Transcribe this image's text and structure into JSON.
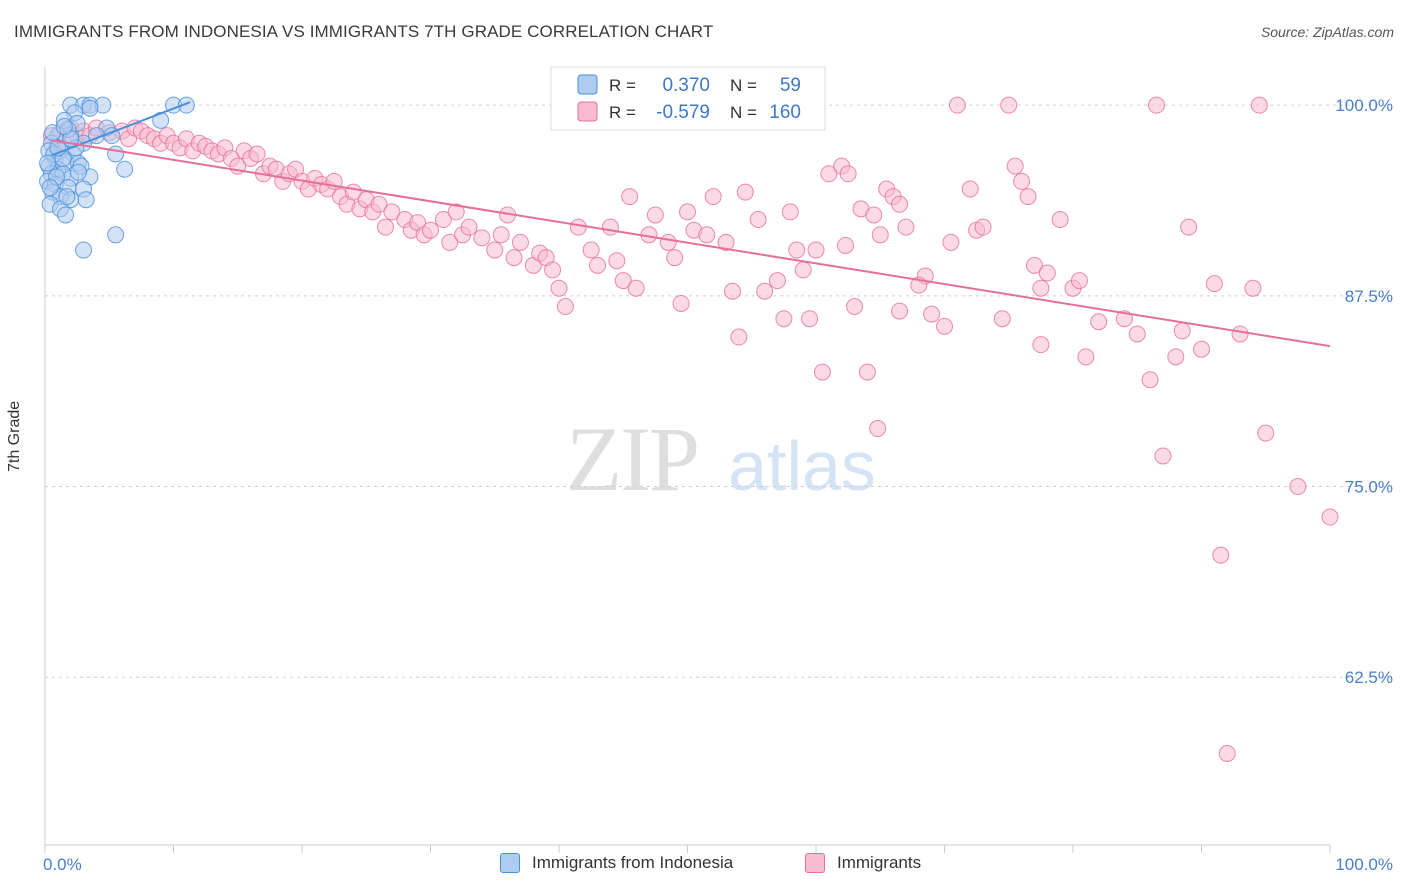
{
  "header": {
    "title": "IMMIGRANTS FROM INDONESIA VS IMMIGRANTS 7TH GRADE CORRELATION CHART",
    "source": "Source: ZipAtlas.com"
  },
  "watermark": {
    "zip": "ZIP",
    "atlas": "atlas"
  },
  "colors": {
    "blue": "#4a90d9",
    "blue_fill": "#aecbf0",
    "pink": "#e66f9a",
    "pink_fill": "#f7bcd0",
    "grid": "#cfcfcf"
  },
  "chart_data": {
    "type": "scatter",
    "title": "IMMIGRANTS FROM INDONESIA VS IMMIGRANTS 7TH GRADE CORRELATION CHART",
    "xlabel": "",
    "ylabel": "7th Grade",
    "xlim": [
      0,
      100
    ],
    "ylim": [
      51.5,
      102.5
    ],
    "x_tick_labels": [
      "0.0%",
      "100.0%"
    ],
    "y_ticks": [
      62.5,
      75.0,
      87.5,
      100.0
    ],
    "y_tick_labels": [
      "62.5%",
      "75.0%",
      "87.5%",
      "100.0%"
    ],
    "legend_stats": [
      {
        "r_label": "R =",
        "r_value": "0.370",
        "n_label": "N =",
        "n_value": "59"
      },
      {
        "r_label": "R =",
        "r_value": "-0.579",
        "n_label": "N =",
        "n_value": "160"
      }
    ],
    "series": [
      {
        "name": "Immigrants from Indonesia",
        "color": "#4a90d9",
        "trend": {
          "x": [
            0.5,
            11.3
          ],
          "y": [
            96.7,
            100.2
          ]
        },
        "points": [
          [
            2.0,
            100
          ],
          [
            3.0,
            100
          ],
          [
            3.5,
            100
          ],
          [
            4.5,
            100
          ],
          [
            10.0,
            100
          ],
          [
            11.0,
            100
          ],
          [
            2.3,
            99.5
          ],
          [
            3.5,
            99.8
          ],
          [
            1.5,
            99.0
          ],
          [
            2.5,
            98.8
          ],
          [
            4.8,
            98.5
          ],
          [
            9.0,
            99.0
          ],
          [
            1.0,
            98.0
          ],
          [
            2.0,
            98.0
          ],
          [
            3.0,
            97.5
          ],
          [
            4.0,
            98.0
          ],
          [
            5.2,
            98.0
          ],
          [
            0.5,
            97.5
          ],
          [
            1.2,
            97.0
          ],
          [
            2.2,
            96.8
          ],
          [
            0.8,
            96.5
          ],
          [
            1.6,
            96.3
          ],
          [
            2.6,
            96.2
          ],
          [
            0.3,
            96.0
          ],
          [
            1.0,
            95.8
          ],
          [
            0.5,
            95.5
          ],
          [
            1.4,
            95.5
          ],
          [
            2.0,
            95.2
          ],
          [
            3.5,
            95.3
          ],
          [
            0.2,
            95.0
          ],
          [
            0.8,
            94.8
          ],
          [
            1.8,
            94.6
          ],
          [
            0.6,
            94.3
          ],
          [
            1.2,
            94.0
          ],
          [
            2.0,
            93.8
          ],
          [
            0.4,
            93.5
          ],
          [
            1.2,
            93.2
          ],
          [
            1.6,
            92.8
          ],
          [
            5.5,
            96.8
          ],
          [
            6.2,
            95.8
          ],
          [
            0.3,
            97.0
          ],
          [
            0.7,
            96.8
          ],
          [
            1.4,
            96.5
          ],
          [
            2.8,
            96.0
          ],
          [
            0.9,
            95.3
          ],
          [
            0.4,
            94.6
          ],
          [
            1.7,
            94.0
          ],
          [
            3.0,
            94.5
          ],
          [
            2.6,
            95.6
          ],
          [
            1.0,
            97.2
          ],
          [
            2.4,
            97.2
          ],
          [
            0.6,
            98.2
          ],
          [
            1.8,
            98.4
          ],
          [
            0.2,
            96.2
          ],
          [
            3.2,
            93.8
          ],
          [
            5.5,
            91.5
          ],
          [
            3.0,
            90.5
          ],
          [
            2.0,
            97.8
          ],
          [
            1.5,
            98.6
          ]
        ]
      },
      {
        "name": "Immigrants",
        "color": "#e66f9a",
        "trend": {
          "x": [
            0.5,
            100
          ],
          "y": [
            97.7,
            84.2
          ]
        },
        "points": [
          [
            0.5,
            98.0
          ],
          [
            1.0,
            97.5
          ],
          [
            1.2,
            98.2
          ],
          [
            2.0,
            98.5
          ],
          [
            2.5,
            98.0
          ],
          [
            3.0,
            98.3
          ],
          [
            3.5,
            98.0
          ],
          [
            4.0,
            98.5
          ],
          [
            5.0,
            98.2
          ],
          [
            6.0,
            98.3
          ],
          [
            6.5,
            97.8
          ],
          [
            7.0,
            98.5
          ],
          [
            7.5,
            98.3
          ],
          [
            8.0,
            98.0
          ],
          [
            8.5,
            97.8
          ],
          [
            9.0,
            97.5
          ],
          [
            9.5,
            98.0
          ],
          [
            10.0,
            97.5
          ],
          [
            10.5,
            97.2
          ],
          [
            11.0,
            97.8
          ],
          [
            11.5,
            97.0
          ],
          [
            12.0,
            97.5
          ],
          [
            12.5,
            97.3
          ],
          [
            13.0,
            97.0
          ],
          [
            13.5,
            96.8
          ],
          [
            14.0,
            97.2
          ],
          [
            14.5,
            96.5
          ],
          [
            15.0,
            96.0
          ],
          [
            15.5,
            97.0
          ],
          [
            16.0,
            96.5
          ],
          [
            16.5,
            96.8
          ],
          [
            17.0,
            95.5
          ],
          [
            17.5,
            96.0
          ],
          [
            18.0,
            95.8
          ],
          [
            18.5,
            95.0
          ],
          [
            19.0,
            95.5
          ],
          [
            19.5,
            95.8
          ],
          [
            20.0,
            95.0
          ],
          [
            20.5,
            94.5
          ],
          [
            21.0,
            95.2
          ],
          [
            21.5,
            94.8
          ],
          [
            22.0,
            94.5
          ],
          [
            22.5,
            95.0
          ],
          [
            23.0,
            94.0
          ],
          [
            23.5,
            93.5
          ],
          [
            24.0,
            94.3
          ],
          [
            24.5,
            93.2
          ],
          [
            25.0,
            93.8
          ],
          [
            25.5,
            93.0
          ],
          [
            26.0,
            93.5
          ],
          [
            26.5,
            92.0
          ],
          [
            27.0,
            93.0
          ],
          [
            28.0,
            92.5
          ],
          [
            28.5,
            91.8
          ],
          [
            29.0,
            92.3
          ],
          [
            29.5,
            91.5
          ],
          [
            30.0,
            91.8
          ],
          [
            31.0,
            92.5
          ],
          [
            31.5,
            91.0
          ],
          [
            32.0,
            93.0
          ],
          [
            32.5,
            91.5
          ],
          [
            33.0,
            92.0
          ],
          [
            34.0,
            91.3
          ],
          [
            35.0,
            90.5
          ],
          [
            35.5,
            91.5
          ],
          [
            36.0,
            92.8
          ],
          [
            36.5,
            90.0
          ],
          [
            37.0,
            91.0
          ],
          [
            38.0,
            89.5
          ],
          [
            38.5,
            90.3
          ],
          [
            39.0,
            90.0
          ],
          [
            39.5,
            89.2
          ],
          [
            40.0,
            88.0
          ],
          [
            40.5,
            86.8
          ],
          [
            41.5,
            92.0
          ],
          [
            42.5,
            90.5
          ],
          [
            43.0,
            89.5
          ],
          [
            44.0,
            92.0
          ],
          [
            44.5,
            89.8
          ],
          [
            45.0,
            88.5
          ],
          [
            46.0,
            88.0
          ],
          [
            47.0,
            91.5
          ],
          [
            47.5,
            92.8
          ],
          [
            48.5,
            91.0
          ],
          [
            49.0,
            90.0
          ],
          [
            50.0,
            93.0
          ],
          [
            50.5,
            91.8
          ],
          [
            51.5,
            91.5
          ],
          [
            52.0,
            94.0
          ],
          [
            53.0,
            91.0
          ],
          [
            54.5,
            94.3
          ],
          [
            55.5,
            92.5
          ],
          [
            56.0,
            87.8
          ],
          [
            57.0,
            88.5
          ],
          [
            57.5,
            86.0
          ],
          [
            58.0,
            93.0
          ],
          [
            58.5,
            90.5
          ],
          [
            59.0,
            89.2
          ],
          [
            59.5,
            86.0
          ],
          [
            60.0,
            90.5
          ],
          [
            61.0,
            95.5
          ],
          [
            62.0,
            96.0
          ],
          [
            62.5,
            95.5
          ],
          [
            63.0,
            86.8
          ],
          [
            63.5,
            93.2
          ],
          [
            64.5,
            92.8
          ],
          [
            65.0,
            91.5
          ],
          [
            65.5,
            94.5
          ],
          [
            66.0,
            94.0
          ],
          [
            66.5,
            86.5
          ],
          [
            67.0,
            92.0
          ],
          [
            68.5,
            88.8
          ],
          [
            69.0,
            86.3
          ],
          [
            70.0,
            85.5
          ],
          [
            71.0,
            100.0
          ],
          [
            72.0,
            94.5
          ],
          [
            72.5,
            91.8
          ],
          [
            73.0,
            92.0
          ],
          [
            74.5,
            86.0
          ],
          [
            75.0,
            100.0
          ],
          [
            76.0,
            95.0
          ],
          [
            76.5,
            94.0
          ],
          [
            77.0,
            89.5
          ],
          [
            77.5,
            88.0
          ],
          [
            78.0,
            89.0
          ],
          [
            79.0,
            92.5
          ],
          [
            80.0,
            88.0
          ],
          [
            81.0,
            83.5
          ],
          [
            82.0,
            85.8
          ],
          [
            84.0,
            86.0
          ],
          [
            85.0,
            85.0
          ],
          [
            86.5,
            100.0
          ],
          [
            86.0,
            82.0
          ],
          [
            87.0,
            77.0
          ],
          [
            88.0,
            83.5
          ],
          [
            89.0,
            92.0
          ],
          [
            90.0,
            84.0
          ],
          [
            91.5,
            70.5
          ],
          [
            92.0,
            57.5
          ],
          [
            93.0,
            85.0
          ],
          [
            94.0,
            88.0
          ],
          [
            94.5,
            100.0
          ],
          [
            95.0,
            78.5
          ],
          [
            97.5,
            75.0
          ],
          [
            100.0,
            73.0
          ],
          [
            60.5,
            82.5
          ],
          [
            64.0,
            82.5
          ],
          [
            64.8,
            78.8
          ],
          [
            68.0,
            88.2
          ],
          [
            80.5,
            88.5
          ],
          [
            88.5,
            85.2
          ],
          [
            91.0,
            88.3
          ],
          [
            77.5,
            84.3
          ],
          [
            53.5,
            87.8
          ],
          [
            54.0,
            84.8
          ],
          [
            49.5,
            87.0
          ],
          [
            62.3,
            90.8
          ],
          [
            66.5,
            93.5
          ],
          [
            45.5,
            94.0
          ],
          [
            70.5,
            91.0
          ],
          [
            75.5,
            96.0
          ]
        ]
      }
    ]
  }
}
